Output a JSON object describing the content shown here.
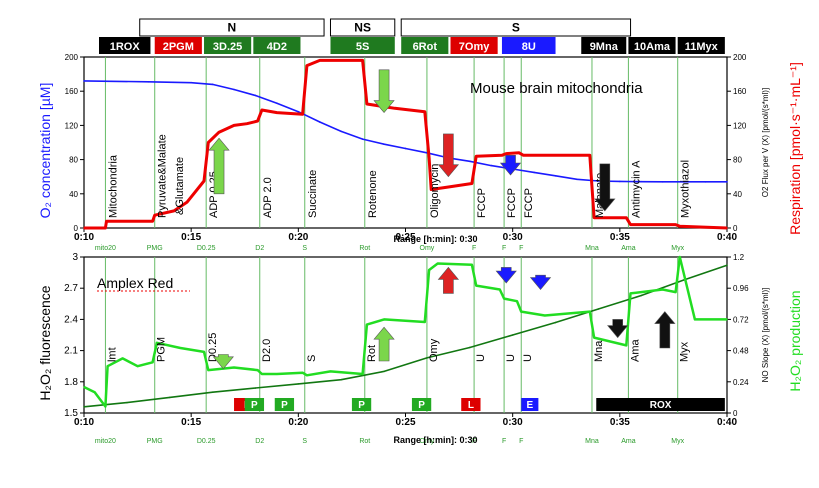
{
  "chart_data": [
    {
      "type": "line",
      "title": "Mouse brain mitochondria",
      "xlabel": "Range [h:min]: 0:30",
      "xlim_minutes": [
        10,
        40
      ],
      "x_tick_labels": [
        "0:10",
        "0:15",
        "0:20",
        "0:25",
        "0:30",
        "0:35",
        "0:40"
      ],
      "y_left_label": "O2 concentration [µM]",
      "y_left_lim": [
        0,
        200
      ],
      "y_left_ticks": [
        "0",
        "40",
        "80",
        "120",
        "160",
        "200"
      ],
      "y_right_label": "Respiration [pmol·s-1·mL-1]",
      "y_right_axis_title": "O2 Flux per V (X) [pmol/(s*ml)]",
      "y_right_lim": [
        0,
        200
      ],
      "y_right_ticks": [
        "0",
        "40",
        "80",
        "120",
        "160",
        "200"
      ],
      "event_marks": [
        {
          "t": 11.0,
          "label": "mito20"
        },
        {
          "t": 13.3,
          "label": "PMG"
        },
        {
          "t": 15.7,
          "label": "D0.25"
        },
        {
          "t": 18.2,
          "label": "D2"
        },
        {
          "t": 20.3,
          "label": "S"
        },
        {
          "t": 23.1,
          "label": "Rot"
        },
        {
          "t": 26.0,
          "label": "Omy"
        },
        {
          "t": 28.2,
          "label": "F"
        },
        {
          "t": 29.6,
          "label": "F"
        },
        {
          "t": 30.4,
          "label": "F"
        },
        {
          "t": 33.7,
          "label": "Mna"
        },
        {
          "t": 35.4,
          "label": "Ama"
        },
        {
          "t": 37.7,
          "label": "Myx"
        }
      ],
      "annotations": [
        {
          "t": 11.0,
          "text": "Mitochondria"
        },
        {
          "t": 13.3,
          "text": "Pyruvate&Malate"
        },
        {
          "t": 14.1,
          "text": "&Glutamate"
        },
        {
          "t": 15.7,
          "text": "ADP 0.25"
        },
        {
          "t": 18.2,
          "text": "ADP 2.0"
        },
        {
          "t": 20.3,
          "text": "Succinate"
        },
        {
          "t": 23.1,
          "text": "Rotenone"
        },
        {
          "t": 26.0,
          "text": "Oligomycin"
        },
        {
          "t": 28.2,
          "text": "FCCP"
        },
        {
          "t": 29.6,
          "text": "FCCP"
        },
        {
          "t": 30.4,
          "text": "FCCP"
        },
        {
          "t": 33.7,
          "text": "Malonate"
        },
        {
          "t": 35.4,
          "text": "Antimycin A"
        },
        {
          "t": 37.7,
          "text": "Myxothiazol"
        }
      ],
      "series": [
        {
          "name": "O2 concentration",
          "color": "#1a1aff",
          "x": [
            10,
            13,
            15,
            16,
            17,
            18,
            19,
            20,
            21,
            22,
            23,
            24,
            25,
            26,
            27,
            28,
            29,
            30,
            31,
            32,
            33,
            34,
            35,
            36,
            37,
            38,
            39,
            40
          ],
          "y": [
            172,
            171,
            170,
            168,
            162,
            155,
            146,
            136,
            124,
            113,
            104,
            98,
            93,
            88,
            82,
            78,
            73,
            69,
            65,
            61,
            57,
            55,
            54.5,
            54.2,
            54,
            54,
            54,
            54
          ]
        },
        {
          "name": "Respiration",
          "color": "#ee0000",
          "x": [
            10,
            11,
            11.05,
            13.2,
            13.3,
            14.2,
            14.8,
            15.6,
            15.8,
            16.3,
            17.0,
            17.6,
            18.1,
            18.3,
            19.0,
            20.2,
            20.4,
            21.0,
            23.0,
            23.2,
            24.5,
            25.9,
            26.1,
            26.2,
            27.0,
            28.1,
            28.3,
            29.5,
            29.7,
            30.3,
            30.5,
            33.6,
            33.8,
            35.3,
            35.5,
            37.6,
            37.8,
            40
          ],
          "y": [
            0,
            0,
            8,
            8,
            15,
            20,
            30,
            55,
            100,
            112,
            120,
            122,
            125,
            138,
            135,
            133,
            190,
            196,
            196,
            145,
            140,
            136,
            82,
            45,
            48,
            52,
            84,
            85,
            87,
            88,
            85,
            85,
            12,
            12,
            4,
            4,
            2,
            0
          ]
        }
      ]
    },
    {
      "type": "line",
      "title": "Amplex Red",
      "xlabel": "Range [h:min]: 0:30",
      "xlim_minutes": [
        10,
        40
      ],
      "x_tick_labels": [
        "0:10",
        "0:15",
        "0:20",
        "0:25",
        "0:30",
        "0:35",
        "0:40"
      ],
      "y_left_label": "H2O2 fluorescence",
      "y_left_lim": [
        1.5,
        3.0
      ],
      "y_left_ticks": [
        "1.5",
        "1.8",
        "2.1",
        "2.4",
        "2.7",
        "3"
      ],
      "y_right_label": "H2O2 production",
      "y_right_axis_title": "NO Slope (X) [pmol/(s*ml)]",
      "y_right_lim": [
        0,
        1.2
      ],
      "y_right_ticks": [
        "0",
        "0.24",
        "0.48",
        "0.72",
        "0.96",
        "1.2"
      ],
      "event_marks": [
        {
          "t": 11.0,
          "label": "mito20"
        },
        {
          "t": 13.3,
          "label": "PMG"
        },
        {
          "t": 15.7,
          "label": "D0.25"
        },
        {
          "t": 18.2,
          "label": "D2"
        },
        {
          "t": 20.3,
          "label": "S"
        },
        {
          "t": 23.1,
          "label": "Rot"
        },
        {
          "t": 26.0,
          "label": "Omy"
        },
        {
          "t": 28.2,
          "label": "F"
        },
        {
          "t": 29.6,
          "label": "F"
        },
        {
          "t": 30.4,
          "label": "F"
        },
        {
          "t": 33.7,
          "label": "Mna"
        },
        {
          "t": 35.4,
          "label": "Ama"
        },
        {
          "t": 37.7,
          "label": "Myx"
        }
      ],
      "annotations": [
        {
          "t": 11.0,
          "text": "lmt"
        },
        {
          "t": 13.3,
          "text": "PGM"
        },
        {
          "t": 15.7,
          "text": "D0.25"
        },
        {
          "t": 18.2,
          "text": "D2.0"
        },
        {
          "t": 20.3,
          "text": "S"
        },
        {
          "t": 23.1,
          "text": "Rot"
        },
        {
          "t": 26.0,
          "text": "Omy"
        },
        {
          "t": 28.2,
          "text": "U"
        },
        {
          "t": 29.6,
          "text": "U"
        },
        {
          "t": 30.4,
          "text": "U"
        },
        {
          "t": 33.7,
          "text": "Mna"
        },
        {
          "t": 35.4,
          "text": "Ama"
        },
        {
          "t": 37.7,
          "text": "Myx"
        }
      ],
      "bottom_boxes": [
        {
          "label": "L",
          "t0": 17.0,
          "t1": 18.2,
          "color": "#dd0000"
        },
        {
          "label": "P",
          "t0": 17.5,
          "t1": 18.4,
          "color": "#22aa22"
        },
        {
          "label": "P",
          "t0": 18.9,
          "t1": 19.8,
          "color": "#22aa22"
        },
        {
          "label": "P",
          "t0": 22.5,
          "t1": 23.4,
          "color": "#22aa22"
        },
        {
          "label": "P",
          "t0": 25.3,
          "t1": 26.2,
          "color": "#22aa22"
        },
        {
          "label": "L",
          "t0": 27.6,
          "t1": 28.5,
          "color": "#dd0000"
        },
        {
          "label": "E",
          "t0": 30.4,
          "t1": 31.2,
          "color": "#1a1aff"
        },
        {
          "label": "ROX",
          "t0": 33.9,
          "t1": 39.9,
          "color": "#000000"
        }
      ],
      "series": [
        {
          "name": "H2O2 fluorescence",
          "color": "#117711",
          "x": [
            10,
            12,
            14,
            16,
            18,
            20,
            22,
            24,
            26,
            28,
            30,
            32,
            34,
            36,
            38,
            40
          ],
          "y": [
            1.56,
            1.6,
            1.65,
            1.7,
            1.74,
            1.78,
            1.82,
            1.9,
            2.03,
            2.13,
            2.25,
            2.37,
            2.5,
            2.63,
            2.78,
            2.92
          ]
        },
        {
          "name": "H2O2 production",
          "color": "#22dd22",
          "x": [
            10,
            10.5,
            11.0,
            11.1,
            11.8,
            12.5,
            13.2,
            13.4,
            14.5,
            15.6,
            15.8,
            17.0,
            18.1,
            18.3,
            19.0,
            20.2,
            20.4,
            21.5,
            23.0,
            23.2,
            24.0,
            25.9,
            26.1,
            26.5,
            28.1,
            28.3,
            29.4,
            29.6,
            30.2,
            30.4,
            31.5,
            33.6,
            33.8,
            35.3,
            35.5,
            37.0,
            37.6,
            37.8,
            38.5,
            40
          ],
          "y": [
            0.2,
            0.16,
            0.05,
            0.36,
            0.42,
            0.36,
            0.39,
            0.54,
            0.5,
            0.47,
            0.33,
            0.35,
            0.33,
            0.3,
            0.3,
            0.31,
            0.29,
            0.32,
            0.3,
            0.68,
            0.72,
            0.7,
            1.1,
            1.15,
            1.14,
            0.98,
            0.95,
            0.88,
            0.86,
            0.78,
            0.75,
            0.78,
            0.58,
            0.52,
            0.92,
            0.95,
            0.93,
            1.2,
            0.72,
            0.72
          ]
        }
      ]
    }
  ],
  "top_bar": {
    "groups": [
      {
        "label": "N",
        "t0": 12.6,
        "t1": 21.2
      },
      {
        "label": "NS",
        "t0": 21.5,
        "t1": 24.5
      },
      {
        "label": "S",
        "t0": 24.8,
        "t1": 35.5
      }
    ],
    "steps": [
      {
        "label": "1ROX",
        "t0": 10.7,
        "t1": 13.1,
        "fill": "#000000",
        "text": "#ffffff"
      },
      {
        "label": "2PGM",
        "t0": 13.3,
        "t1": 15.5,
        "fill": "#dd0000",
        "text": "#ffffff"
      },
      {
        "label": "3D.25",
        "t0": 15.6,
        "t1": 17.8,
        "fill": "#1f7a1f",
        "text": "#ffffff"
      },
      {
        "label": "4D2",
        "t0": 17.9,
        "t1": 20.1,
        "fill": "#1f7a1f",
        "text": "#ffffff"
      },
      {
        "label": "5S",
        "t0": 21.5,
        "t1": 24.5,
        "fill": "#1f7a1f",
        "text": "#ffffff"
      },
      {
        "label": "6Rot",
        "t0": 24.8,
        "t1": 27.0,
        "fill": "#1f7a1f",
        "text": "#ffffff"
      },
      {
        "label": "7Omy",
        "t0": 27.1,
        "t1": 29.3,
        "fill": "#dd0000",
        "text": "#ffffff"
      },
      {
        "label": "8U",
        "t0": 29.5,
        "t1": 32.0,
        "fill": "#1a1aff",
        "text": "#ffffff"
      },
      {
        "label": "9Mna",
        "t0": 33.2,
        "t1": 35.3,
        "fill": "#000000",
        "text": "#ffffff"
      },
      {
        "label": "10Ama",
        "t0": 35.4,
        "t1": 37.6,
        "fill": "#000000",
        "text": "#ffffff"
      },
      {
        "label": "11Myx",
        "t0": 37.7,
        "t1": 39.9,
        "fill": "#000000",
        "text": "#ffffff"
      }
    ]
  },
  "arrows": [
    {
      "panel": 0,
      "t": 16.3,
      "dir": "up",
      "color": "#7bd64b",
      "v0": 40,
      "v1": 105
    },
    {
      "panel": 0,
      "t": 24.0,
      "dir": "down",
      "color": "#7bd64b",
      "v0": 185,
      "v1": 135
    },
    {
      "panel": 0,
      "t": 27.0,
      "dir": "down",
      "color": "#dd2222",
      "v0": 110,
      "v1": 60
    },
    {
      "panel": 0,
      "t": 29.9,
      "dir": "down",
      "color": "#1a1aff",
      "v0": 85,
      "v1": 62
    },
    {
      "panel": 0,
      "t": 34.3,
      "dir": "down",
      "color": "#111111",
      "v0": 75,
      "v1": 20
    },
    {
      "panel": 1,
      "t": 16.5,
      "dir": "down",
      "color": "#7bd64b",
      "v0": 0.45,
      "v1": 0.34
    },
    {
      "panel": 1,
      "t": 24.0,
      "dir": "up",
      "color": "#7bd64b",
      "v0": 0.4,
      "v1": 0.66
    },
    {
      "panel": 1,
      "t": 27.0,
      "dir": "up",
      "color": "#dd2222",
      "v0": 0.92,
      "v1": 1.12
    },
    {
      "panel": 1,
      "t": 29.7,
      "dir": "down",
      "color": "#1a1aff",
      "v0": 1.12,
      "v1": 1.0
    },
    {
      "panel": 1,
      "t": 31.3,
      "dir": "down",
      "color": "#1a1aff",
      "v0": 1.06,
      "v1": 0.95
    },
    {
      "panel": 1,
      "t": 34.9,
      "dir": "down",
      "color": "#111111",
      "v0": 0.72,
      "v1": 0.58
    },
    {
      "panel": 1,
      "t": 37.1,
      "dir": "up",
      "color": "#111111",
      "v0": 0.5,
      "v1": 0.78
    }
  ],
  "colors": {
    "o2": "#1a1aff",
    "respiration": "#ee0000",
    "fluorescence": "#117711",
    "production": "#22dd22",
    "event_line": "#66bb66"
  }
}
